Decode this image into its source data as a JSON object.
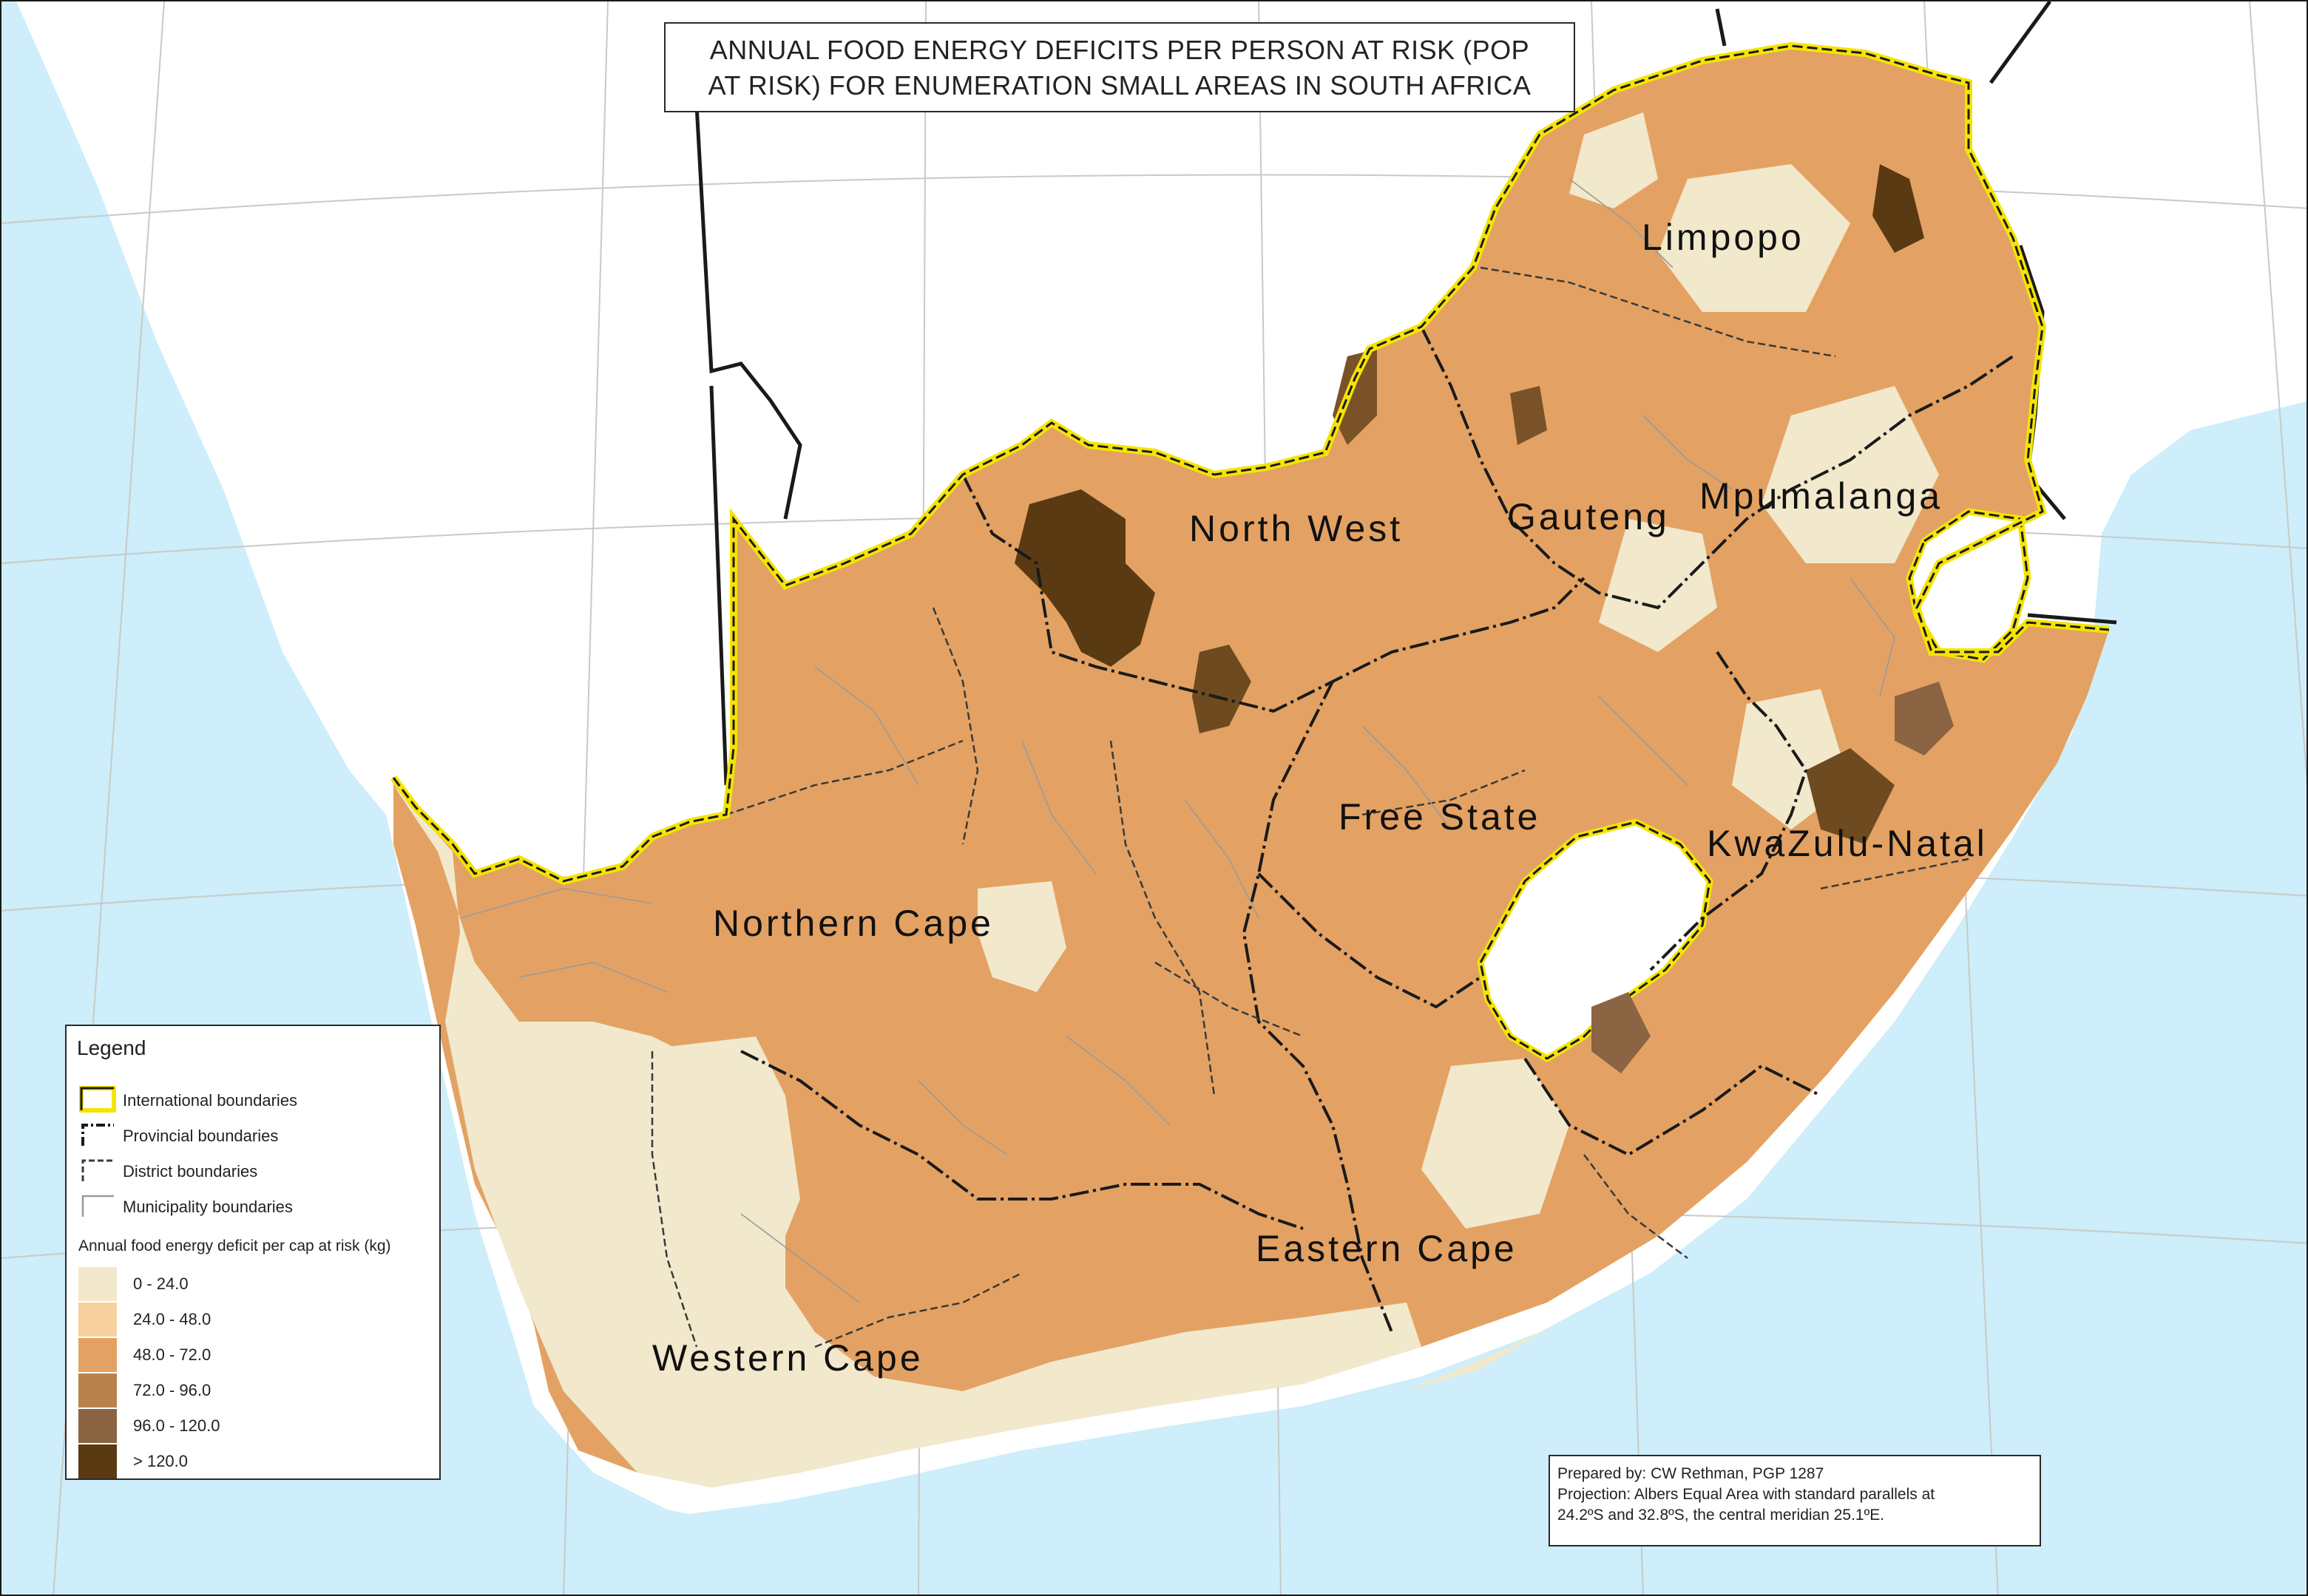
{
  "title": {
    "line1": "ANNUAL FOOD ENERGY DEFICITS PER PERSON AT RISK (POP",
    "line2": "AT RISK) FOR ENUMERATION SMALL AREAS IN SOUTH AFRICA"
  },
  "provinces": [
    {
      "id": "limpopo",
      "label": "Limpopo"
    },
    {
      "id": "north-west",
      "label": "North West"
    },
    {
      "id": "gauteng",
      "label": "Gauteng"
    },
    {
      "id": "mpumalanga",
      "label": "Mpumalanga"
    },
    {
      "id": "free-state",
      "label": "Free State"
    },
    {
      "id": "kwazulu-natal",
      "label": "KwaZulu-Natal"
    },
    {
      "id": "northern-cape",
      "label": "Northern Cape"
    },
    {
      "id": "eastern-cape",
      "label": "Eastern Cape"
    },
    {
      "id": "western-cape",
      "label": "Western Cape"
    }
  ],
  "legend": {
    "title": "Legend",
    "boundaries": [
      {
        "label": "International boundaries"
      },
      {
        "label": "Provincial boundaries"
      },
      {
        "label": "District boundaries"
      },
      {
        "label": "Municipality boundaries"
      }
    ],
    "ramp_title": "Annual food energy deficit per cap at risk (kg)",
    "classes": [
      {
        "label": "0 - 24.0",
        "color": "#f2e8cc"
      },
      {
        "label": "24.0 - 48.0",
        "color": "#f7d29e"
      },
      {
        "label": "48.0 - 72.0",
        "color": "#e3a263"
      },
      {
        "label": "72.0 - 96.0",
        "color": "#b8824e"
      },
      {
        "label": "96.0 - 120.0",
        "color": "#8a6443"
      },
      {
        "label": "> 120.0",
        "color": "#5a3a12"
      }
    ]
  },
  "credits": {
    "line1": "Prepared by: CW Rethman, PGP 1287",
    "line2": "Projection: Albers Equal Area with standard parallels at",
    "line3": "24.2ºS  and 32.8ºS, the central meridian 25.1ºE."
  },
  "colors": {
    "ocean": "#cdeefa",
    "land_outside": "#ffffff",
    "international_boundary": "#f5e400",
    "boundary_dark": "#1a1a1a"
  }
}
